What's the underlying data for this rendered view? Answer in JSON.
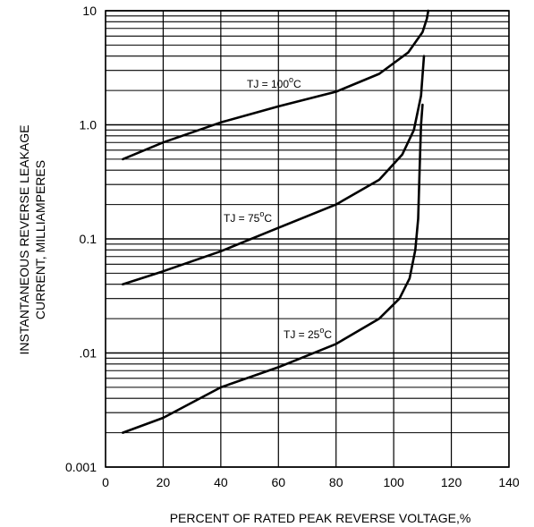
{
  "chart_data": {
    "type": "line",
    "title": "",
    "xlabel": "PERCENT OF RATED PEAK REVERSE VOLTAGE,%",
    "ylabel_line1": "INSTANTANEOUS REVERSE LEAKAGE",
    "ylabel_line2": "CURRENT, MILLIAMPERES",
    "xlim": [
      0,
      140
    ],
    "ylim": [
      0.001,
      10
    ],
    "yscale": "log",
    "grid": true,
    "x_ticks": [
      0,
      20,
      40,
      60,
      80,
      100,
      120,
      140
    ],
    "x_tick_labels": [
      "0",
      "20",
      "40",
      "60",
      "80",
      "100",
      "120",
      "140"
    ],
    "y_ticks": [
      0.001,
      0.01,
      0.1,
      1,
      10
    ],
    "y_tick_labels": [
      "0.001",
      ".01",
      "0.1",
      "1.0",
      "10"
    ],
    "series": [
      {
        "name": "TJ = 100",
        "label_main": "TJ = 100",
        "label_deg": "o",
        "label_unit": "C",
        "color": "#000000",
        "x": [
          6,
          20,
          40,
          60,
          80,
          95,
          105,
          110,
          111.5,
          112
        ],
        "y": [
          0.5,
          0.7,
          1.05,
          1.45,
          1.95,
          2.8,
          4.3,
          6.5,
          8.5,
          10
        ]
      },
      {
        "name": "TJ = 75",
        "label_main": "TJ = 75",
        "label_deg": "o",
        "label_unit": "C",
        "color": "#000000",
        "x": [
          6,
          20,
          40,
          60,
          80,
          95,
          103,
          107,
          109.5,
          110.5
        ],
        "y": [
          0.04,
          0.052,
          0.078,
          0.125,
          0.2,
          0.33,
          0.55,
          0.9,
          1.8,
          4
        ]
      },
      {
        "name": "TJ = 25",
        "label_main": "TJ = 25",
        "label_deg": "o",
        "label_unit": "C",
        "color": "#000000",
        "x": [
          6,
          20,
          40,
          60,
          80,
          95,
          102,
          105.5,
          107.5,
          108.5,
          109,
          109.5,
          110
        ],
        "y": [
          0.002,
          0.0027,
          0.005,
          0.0075,
          0.012,
          0.02,
          0.03,
          0.045,
          0.08,
          0.15,
          0.4,
          1.0,
          1.5
        ]
      }
    ]
  }
}
